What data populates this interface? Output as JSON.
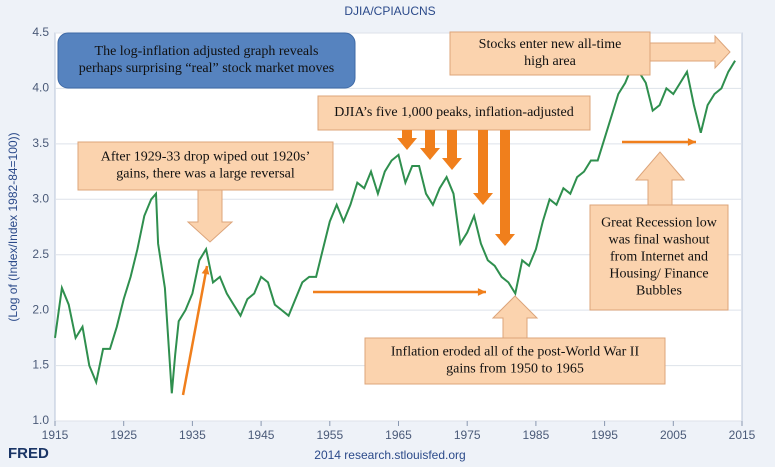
{
  "chart_data": {
    "type": "line",
    "title": "DJIA/CPIAUCNS",
    "ylabel": "(Log of (Index/Index 1982-84=100))",
    "source": "2014 research.stlouisfed.org",
    "logo": "FRED",
    "x": [
      1915,
      1916,
      1917,
      1918,
      1919,
      1920,
      1921,
      1922,
      1923,
      1924,
      1925,
      1926,
      1927,
      1928,
      1929,
      1929.7,
      1930,
      1931,
      1932,
      1932.5,
      1933,
      1934,
      1935,
      1936,
      1937,
      1938,
      1939,
      1940,
      1941,
      1942,
      1943,
      1944,
      1945,
      1946,
      1947,
      1948,
      1949,
      1950,
      1951,
      1952,
      1953,
      1954,
      1955,
      1956,
      1957,
      1958,
      1959,
      1960,
      1961,
      1962,
      1963,
      1964,
      1965,
      1966,
      1967,
      1968,
      1969,
      1970,
      1971,
      1972,
      1973,
      1974,
      1975,
      1976,
      1977,
      1978,
      1979,
      1980,
      1981,
      1982,
      1983,
      1984,
      1985,
      1986,
      1987,
      1988,
      1989,
      1990,
      1991,
      1992,
      1993,
      1994,
      1995,
      1996,
      1997,
      1998,
      1999,
      2000,
      2001,
      2002,
      2003,
      2004,
      2005,
      2006,
      2007,
      2008,
      2009,
      2010,
      2011,
      2012,
      2013,
      2014
    ],
    "series": [
      {
        "name": "DJIA/CPIAUCNS",
        "color": "#2f8f4e",
        "values": [
          1.75,
          2.2,
          2.05,
          1.75,
          1.85,
          1.5,
          1.35,
          1.65,
          1.65,
          1.85,
          2.1,
          2.3,
          2.55,
          2.85,
          3.0,
          3.05,
          2.6,
          2.2,
          1.25,
          1.6,
          1.9,
          2.0,
          2.15,
          2.45,
          2.55,
          2.25,
          2.3,
          2.15,
          2.05,
          1.95,
          2.1,
          2.15,
          2.3,
          2.25,
          2.05,
          2.0,
          1.95,
          2.1,
          2.25,
          2.3,
          2.3,
          2.55,
          2.8,
          2.95,
          2.8,
          2.95,
          3.15,
          3.1,
          3.25,
          3.05,
          3.25,
          3.35,
          3.4,
          3.15,
          3.3,
          3.3,
          3.05,
          2.95,
          3.1,
          3.2,
          3.05,
          2.6,
          2.7,
          2.85,
          2.6,
          2.45,
          2.4,
          2.3,
          2.25,
          2.15,
          2.45,
          2.4,
          2.55,
          2.8,
          3.0,
          2.95,
          3.1,
          3.05,
          3.2,
          3.25,
          3.35,
          3.35,
          3.55,
          3.75,
          3.95,
          4.05,
          4.2,
          4.15,
          4.05,
          3.8,
          3.85,
          4.0,
          3.95,
          4.05,
          4.15,
          3.85,
          3.6,
          3.85,
          3.95,
          4.0,
          4.15,
          4.25
        ]
      }
    ],
    "xlim": [
      1915,
      2015
    ],
    "xticks": [
      1915,
      1925,
      1935,
      1945,
      1955,
      1965,
      1975,
      1985,
      1995,
      2005,
      2015
    ],
    "ylim": [
      1.0,
      4.5
    ],
    "yticks": [
      {
        "value": 1.0,
        "label": "1.0"
      },
      {
        "value": 1.5,
        "label": "1.5"
      },
      {
        "value": 2.0,
        "label": "2.0"
      },
      {
        "value": 2.5,
        "label": "2.5"
      },
      {
        "value": 3.0,
        "label": "3.0"
      },
      {
        "value": 3.5,
        "label": "3.5"
      },
      {
        "value": 4.0,
        "label": "4.0"
      },
      {
        "value": 4.5,
        "label": "4.5"
      }
    ],
    "grid": true,
    "annotations": [
      {
        "lines": [
          "The log-inflation adjusted graph reveals",
          "perhaps surprising “real” stock market moves"
        ]
      },
      {
        "lines": [
          "Stocks enter new all-time",
          "high area"
        ]
      },
      {
        "lines": [
          "DJIA’s five 1,000 peaks, inflation-adjusted"
        ]
      },
      {
        "lines": [
          "After 1929-33 drop wiped out 1920s’",
          "gains, there was a large reversal"
        ]
      },
      {
        "lines": [
          "Great Recession low",
          "was final washout",
          "from Internet and",
          "Housing/ Finance",
          "Bubbles"
        ]
      },
      {
        "lines": [
          "Inflation eroded all of the post-World War II",
          "gains from 1950 to 1965"
        ]
      }
    ]
  }
}
